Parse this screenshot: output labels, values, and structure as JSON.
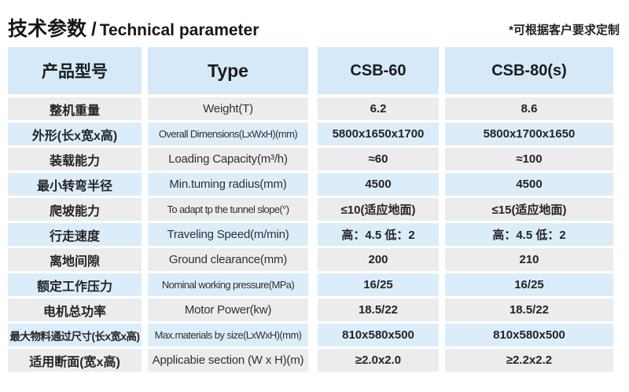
{
  "colors": {
    "header_bg": "#d6e9f8",
    "row_blue": "#dcedfa",
    "row_gray": "#ececec",
    "text_dark": "#1d1d1d",
    "text_cell": "#2e2e2e"
  },
  "header": {
    "title_cn": "技术参数",
    "title_separator": "/",
    "title_en": "Technical parameter",
    "note": "*可根据客户要求定制"
  },
  "table": {
    "columns": {
      "product_model": "产品型号",
      "type": "Type",
      "model_1": "CSB-60",
      "model_2": "CSB-80(s)"
    },
    "rows": [
      {
        "label_cn": "整机重量",
        "label_en": "Weight(T)",
        "csb60": "6.2",
        "csb80": "8.6"
      },
      {
        "label_cn": "外形(长x宽x高)",
        "label_en": "Overall Dimensions(LxWxH)(mm)",
        "csb60": "5800x1650x1700",
        "csb80": "5800x1700x1650"
      },
      {
        "label_cn": "装载能力",
        "label_en": "Loading Capacity(m³/h)",
        "csb60": "≈60",
        "csb80": "≈100"
      },
      {
        "label_cn": "最小转弯半径",
        "label_en": "Min.tuming radius(mm)",
        "csb60": "4500",
        "csb80": "4500"
      },
      {
        "label_cn": "爬坡能力",
        "label_en": "To adapt tp the tunnel slope(°)",
        "csb60": "≤10(适应地面)",
        "csb80": "≤15(适应地面)"
      },
      {
        "label_cn": "行走速度",
        "label_en": "Traveling Speed(m/min)",
        "csb60": "高：4.5 低：2",
        "csb80": "高：4.5 低：2"
      },
      {
        "label_cn": "离地间隙",
        "label_en": "Ground clearance(mm)",
        "csb60": "200",
        "csb80": "210"
      },
      {
        "label_cn": "额定工作压力",
        "label_en": "Nominal working pressure(MPa)",
        "csb60": "16/25",
        "csb80": "16/25"
      },
      {
        "label_cn": "电机总功率",
        "label_en": "Motor Power(kw)",
        "csb60": "18.5/22",
        "csb80": "18.5/22"
      },
      {
        "label_cn": "最大物料通过尺寸(长x宽x高)",
        "label_en": "Max.materials by size(LxWxH)(mm)",
        "csb60": "810x580x500",
        "csb80": "810x580x500"
      },
      {
        "label_cn": "适用断面(宽x高)",
        "label_en": "Applicabie section (W x H)(m)",
        "csb60": "≥2.0x2.0",
        "csb80": "≥2.2x2.2"
      }
    ]
  }
}
